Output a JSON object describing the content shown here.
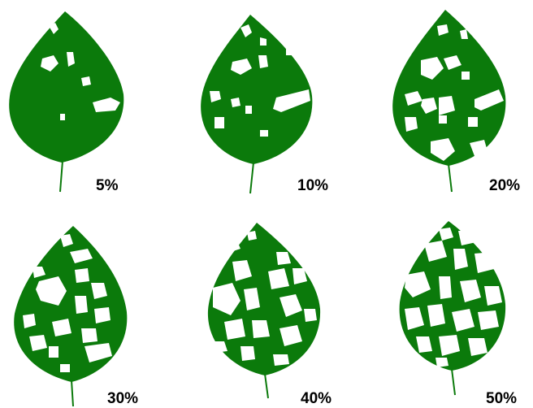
{
  "diagram": {
    "leaf_color": "#0b7a0b",
    "hole_color": "#ffffff",
    "panels": [
      {
        "label": "5%",
        "defoliation": 5
      },
      {
        "label": "10%",
        "defoliation": 10
      },
      {
        "label": "20%",
        "defoliation": 20
      },
      {
        "label": "30%",
        "defoliation": 30
      },
      {
        "label": "40%",
        "defoliation": 40
      },
      {
        "label": "50%",
        "defoliation": 50
      }
    ]
  }
}
